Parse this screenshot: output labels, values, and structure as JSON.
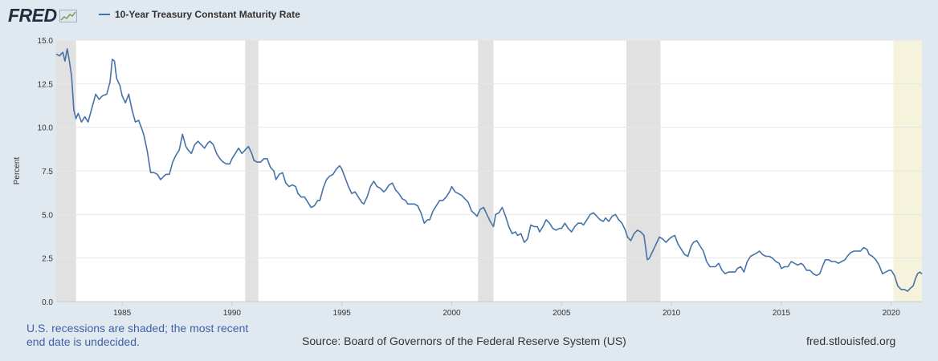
{
  "header": {
    "logo_text": "FRED",
    "logo_icon": "chart-trend-icon",
    "legend_label": "10-Year Treasury Constant Maturity Rate"
  },
  "colors": {
    "background": "#e1e9f0",
    "plot_background": "#ffffff",
    "series_line": "#4572a7",
    "recession_shade": "#e1e1e1",
    "undecided_shade": "#f5f3dc",
    "footer_note_text": "#3e61a8"
  },
  "chart_data": {
    "type": "line",
    "title": "10-Year Treasury Constant Maturity Rate",
    "ylabel": "Percent",
    "xlabel": "",
    "xlim": [
      1982.0,
      2021.4
    ],
    "ylim": [
      0,
      15
    ],
    "x_ticks": [
      {
        "year": 1985,
        "label": "1985"
      },
      {
        "year": 1990,
        "label": "1990"
      },
      {
        "year": 1995,
        "label": "1995"
      },
      {
        "year": 2000,
        "label": "2000"
      },
      {
        "year": 2005,
        "label": "2005"
      },
      {
        "year": 2010,
        "label": "2010"
      },
      {
        "year": 2015,
        "label": "2015"
      },
      {
        "year": 2020,
        "label": "2020"
      }
    ],
    "y_ticks": [
      {
        "value": 0,
        "label": "0.0"
      },
      {
        "value": 2.5,
        "label": "2.5"
      },
      {
        "value": 5,
        "label": "5.0"
      },
      {
        "value": 7.5,
        "label": "7.5"
      },
      {
        "value": 10,
        "label": "10.0"
      },
      {
        "value": 12.5,
        "label": "12.5"
      },
      {
        "value": 15,
        "label": "15.0"
      }
    ],
    "grid": "horizontal",
    "recessions": [
      {
        "start": 1982.0,
        "end": 1982.9
      },
      {
        "start": 1990.6,
        "end": 1991.2
      },
      {
        "start": 2001.2,
        "end": 2001.9
      },
      {
        "start": 2007.95,
        "end": 2009.5
      }
    ],
    "undecided_shading": {
      "start": 2020.1,
      "end": 2021.4
    },
    "series": [
      {
        "name": "10-Year Treasury Constant Maturity Rate",
        "points": [
          [
            1982.0,
            14.2
          ],
          [
            1982.15,
            14.1
          ],
          [
            1982.3,
            14.3
          ],
          [
            1982.4,
            13.8
          ],
          [
            1982.5,
            14.5
          ],
          [
            1982.6,
            13.8
          ],
          [
            1982.7,
            12.9
          ],
          [
            1982.8,
            11.0
          ],
          [
            1982.9,
            10.5
          ],
          [
            1983.0,
            10.8
          ],
          [
            1983.15,
            10.3
          ],
          [
            1983.3,
            10.6
          ],
          [
            1983.45,
            10.3
          ],
          [
            1983.6,
            11.0
          ],
          [
            1983.8,
            11.9
          ],
          [
            1983.95,
            11.6
          ],
          [
            1984.1,
            11.8
          ],
          [
            1984.3,
            11.9
          ],
          [
            1984.45,
            12.6
          ],
          [
            1984.55,
            13.9
          ],
          [
            1984.65,
            13.8
          ],
          [
            1984.75,
            12.8
          ],
          [
            1984.9,
            12.4
          ],
          [
            1985.0,
            11.8
          ],
          [
            1985.15,
            11.4
          ],
          [
            1985.3,
            11.9
          ],
          [
            1985.45,
            11.0
          ],
          [
            1985.6,
            10.3
          ],
          [
            1985.75,
            10.4
          ],
          [
            1985.9,
            9.9
          ],
          [
            1986.0,
            9.5
          ],
          [
            1986.15,
            8.6
          ],
          [
            1986.3,
            7.4
          ],
          [
            1986.45,
            7.4
          ],
          [
            1986.6,
            7.3
          ],
          [
            1986.75,
            7.0
          ],
          [
            1986.9,
            7.2
          ],
          [
            1987.0,
            7.3
          ],
          [
            1987.15,
            7.3
          ],
          [
            1987.3,
            8.0
          ],
          [
            1987.45,
            8.4
          ],
          [
            1987.6,
            8.7
          ],
          [
            1987.75,
            9.6
          ],
          [
            1987.9,
            8.9
          ],
          [
            1988.0,
            8.7
          ],
          [
            1988.15,
            8.5
          ],
          [
            1988.3,
            9.0
          ],
          [
            1988.45,
            9.2
          ],
          [
            1988.6,
            9.0
          ],
          [
            1988.75,
            8.8
          ],
          [
            1988.9,
            9.1
          ],
          [
            1989.0,
            9.2
          ],
          [
            1989.15,
            9.0
          ],
          [
            1989.3,
            8.5
          ],
          [
            1989.45,
            8.2
          ],
          [
            1989.6,
            8.0
          ],
          [
            1989.75,
            7.9
          ],
          [
            1989.9,
            7.9
          ],
          [
            1990.0,
            8.2
          ],
          [
            1990.15,
            8.5
          ],
          [
            1990.3,
            8.8
          ],
          [
            1990.45,
            8.5
          ],
          [
            1990.6,
            8.7
          ],
          [
            1990.75,
            8.9
          ],
          [
            1990.9,
            8.5
          ],
          [
            1991.0,
            8.1
          ],
          [
            1991.15,
            8.0
          ],
          [
            1991.3,
            8.0
          ],
          [
            1991.45,
            8.2
          ],
          [
            1991.6,
            8.2
          ],
          [
            1991.75,
            7.7
          ],
          [
            1991.9,
            7.5
          ],
          [
            1992.0,
            7.0
          ],
          [
            1992.15,
            7.3
          ],
          [
            1992.3,
            7.4
          ],
          [
            1992.45,
            6.8
          ],
          [
            1992.6,
            6.6
          ],
          [
            1992.75,
            6.7
          ],
          [
            1992.9,
            6.6
          ],
          [
            1993.0,
            6.2
          ],
          [
            1993.15,
            6.0
          ],
          [
            1993.3,
            6.0
          ],
          [
            1993.45,
            5.7
          ],
          [
            1993.6,
            5.4
          ],
          [
            1993.75,
            5.5
          ],
          [
            1993.9,
            5.8
          ],
          [
            1994.0,
            5.8
          ],
          [
            1994.15,
            6.5
          ],
          [
            1994.3,
            7.0
          ],
          [
            1994.45,
            7.2
          ],
          [
            1994.6,
            7.3
          ],
          [
            1994.75,
            7.6
          ],
          [
            1994.9,
            7.8
          ],
          [
            1995.0,
            7.6
          ],
          [
            1995.15,
            7.1
          ],
          [
            1995.3,
            6.6
          ],
          [
            1995.45,
            6.2
          ],
          [
            1995.6,
            6.3
          ],
          [
            1995.75,
            6.0
          ],
          [
            1995.9,
            5.7
          ],
          [
            1996.0,
            5.6
          ],
          [
            1996.15,
            6.0
          ],
          [
            1996.3,
            6.6
          ],
          [
            1996.45,
            6.9
          ],
          [
            1996.6,
            6.6
          ],
          [
            1996.75,
            6.5
          ],
          [
            1996.9,
            6.3
          ],
          [
            1997.0,
            6.4
          ],
          [
            1997.15,
            6.7
          ],
          [
            1997.3,
            6.8
          ],
          [
            1997.45,
            6.4
          ],
          [
            1997.6,
            6.2
          ],
          [
            1997.75,
            5.9
          ],
          [
            1997.9,
            5.8
          ],
          [
            1998.0,
            5.6
          ],
          [
            1998.15,
            5.6
          ],
          [
            1998.3,
            5.6
          ],
          [
            1998.45,
            5.5
          ],
          [
            1998.6,
            5.1
          ],
          [
            1998.75,
            4.5
          ],
          [
            1998.9,
            4.7
          ],
          [
            1999.0,
            4.7
          ],
          [
            1999.15,
            5.2
          ],
          [
            1999.3,
            5.5
          ],
          [
            1999.45,
            5.8
          ],
          [
            1999.6,
            5.8
          ],
          [
            1999.75,
            6.0
          ],
          [
            1999.9,
            6.3
          ],
          [
            2000.0,
            6.6
          ],
          [
            2000.15,
            6.3
          ],
          [
            2000.3,
            6.2
          ],
          [
            2000.45,
            6.1
          ],
          [
            2000.6,
            5.9
          ],
          [
            2000.75,
            5.7
          ],
          [
            2000.9,
            5.2
          ],
          [
            2001.0,
            5.1
          ],
          [
            2001.15,
            4.9
          ],
          [
            2001.3,
            5.3
          ],
          [
            2001.45,
            5.4
          ],
          [
            2001.6,
            5.0
          ],
          [
            2001.75,
            4.6
          ],
          [
            2001.9,
            4.3
          ],
          [
            2002.0,
            5.0
          ],
          [
            2002.15,
            5.1
          ],
          [
            2002.3,
            5.4
          ],
          [
            2002.45,
            4.9
          ],
          [
            2002.6,
            4.3
          ],
          [
            2002.75,
            3.9
          ],
          [
            2002.9,
            4.0
          ],
          [
            2003.0,
            3.8
          ],
          [
            2003.15,
            3.9
          ],
          [
            2003.3,
            3.4
          ],
          [
            2003.45,
            3.6
          ],
          [
            2003.6,
            4.4
          ],
          [
            2003.75,
            4.3
          ],
          [
            2003.9,
            4.3
          ],
          [
            2004.0,
            4.0
          ],
          [
            2004.15,
            4.3
          ],
          [
            2004.3,
            4.7
          ],
          [
            2004.45,
            4.5
          ],
          [
            2004.6,
            4.2
          ],
          [
            2004.75,
            4.1
          ],
          [
            2004.9,
            4.2
          ],
          [
            2005.0,
            4.2
          ],
          [
            2005.15,
            4.5
          ],
          [
            2005.3,
            4.2
          ],
          [
            2005.45,
            4.0
          ],
          [
            2005.6,
            4.3
          ],
          [
            2005.75,
            4.5
          ],
          [
            2005.9,
            4.5
          ],
          [
            2006.0,
            4.4
          ],
          [
            2006.15,
            4.7
          ],
          [
            2006.3,
            5.0
          ],
          [
            2006.45,
            5.1
          ],
          [
            2006.6,
            4.9
          ],
          [
            2006.75,
            4.7
          ],
          [
            2006.9,
            4.6
          ],
          [
            2007.0,
            4.8
          ],
          [
            2007.15,
            4.6
          ],
          [
            2007.3,
            4.9
          ],
          [
            2007.45,
            5.0
          ],
          [
            2007.6,
            4.7
          ],
          [
            2007.75,
            4.5
          ],
          [
            2007.9,
            4.1
          ],
          [
            2008.0,
            3.7
          ],
          [
            2008.15,
            3.5
          ],
          [
            2008.3,
            3.9
          ],
          [
            2008.45,
            4.1
          ],
          [
            2008.6,
            4.0
          ],
          [
            2008.75,
            3.8
          ],
          [
            2008.9,
            2.4
          ],
          [
            2009.0,
            2.5
          ],
          [
            2009.15,
            2.9
          ],
          [
            2009.3,
            3.3
          ],
          [
            2009.45,
            3.7
          ],
          [
            2009.6,
            3.6
          ],
          [
            2009.75,
            3.4
          ],
          [
            2009.9,
            3.6
          ],
          [
            2010.0,
            3.7
          ],
          [
            2010.15,
            3.8
          ],
          [
            2010.3,
            3.3
          ],
          [
            2010.45,
            3.0
          ],
          [
            2010.6,
            2.7
          ],
          [
            2010.75,
            2.6
          ],
          [
            2010.9,
            3.2
          ],
          [
            2011.0,
            3.4
          ],
          [
            2011.15,
            3.5
          ],
          [
            2011.3,
            3.2
          ],
          [
            2011.45,
            2.9
          ],
          [
            2011.6,
            2.3
          ],
          [
            2011.75,
            2.0
          ],
          [
            2011.9,
            2.0
          ],
          [
            2012.0,
            2.0
          ],
          [
            2012.15,
            2.2
          ],
          [
            2012.3,
            1.8
          ],
          [
            2012.45,
            1.6
          ],
          [
            2012.6,
            1.7
          ],
          [
            2012.75,
            1.7
          ],
          [
            2012.9,
            1.7
          ],
          [
            2013.0,
            1.9
          ],
          [
            2013.15,
            2.0
          ],
          [
            2013.3,
            1.7
          ],
          [
            2013.45,
            2.3
          ],
          [
            2013.6,
            2.6
          ],
          [
            2013.75,
            2.7
          ],
          [
            2013.9,
            2.8
          ],
          [
            2014.0,
            2.9
          ],
          [
            2014.15,
            2.7
          ],
          [
            2014.3,
            2.6
          ],
          [
            2014.45,
            2.6
          ],
          [
            2014.6,
            2.5
          ],
          [
            2014.75,
            2.3
          ],
          [
            2014.9,
            2.2
          ],
          [
            2015.0,
            1.9
          ],
          [
            2015.15,
            2.0
          ],
          [
            2015.3,
            2.0
          ],
          [
            2015.45,
            2.3
          ],
          [
            2015.6,
            2.2
          ],
          [
            2015.75,
            2.1
          ],
          [
            2015.9,
            2.2
          ],
          [
            2016.0,
            2.1
          ],
          [
            2016.15,
            1.8
          ],
          [
            2016.3,
            1.8
          ],
          [
            2016.45,
            1.6
          ],
          [
            2016.6,
            1.5
          ],
          [
            2016.75,
            1.6
          ],
          [
            2016.9,
            2.1
          ],
          [
            2017.0,
            2.4
          ],
          [
            2017.15,
            2.4
          ],
          [
            2017.3,
            2.3
          ],
          [
            2017.45,
            2.3
          ],
          [
            2017.6,
            2.2
          ],
          [
            2017.75,
            2.3
          ],
          [
            2017.9,
            2.4
          ],
          [
            2018.0,
            2.6
          ],
          [
            2018.15,
            2.8
          ],
          [
            2018.3,
            2.9
          ],
          [
            2018.45,
            2.9
          ],
          [
            2018.6,
            2.9
          ],
          [
            2018.75,
            3.1
          ],
          [
            2018.9,
            3.0
          ],
          [
            2019.0,
            2.7
          ],
          [
            2019.15,
            2.6
          ],
          [
            2019.3,
            2.4
          ],
          [
            2019.45,
            2.1
          ],
          [
            2019.6,
            1.6
          ],
          [
            2019.75,
            1.7
          ],
          [
            2019.9,
            1.8
          ],
          [
            2020.0,
            1.8
          ],
          [
            2020.15,
            1.5
          ],
          [
            2020.3,
            0.9
          ],
          [
            2020.45,
            0.7
          ],
          [
            2020.6,
            0.7
          ],
          [
            2020.75,
            0.6
          ],
          [
            2020.9,
            0.8
          ],
          [
            2021.0,
            0.9
          ],
          [
            2021.1,
            1.3
          ],
          [
            2021.2,
            1.6
          ],
          [
            2021.3,
            1.7
          ],
          [
            2021.4,
            1.6
          ]
        ]
      }
    ]
  },
  "footer": {
    "note": "U.S. recessions are shaded; the most recent end date is undecided.",
    "source": "Source: Board of Governors of the Federal Reserve System (US)",
    "url": "fred.stlouisfed.org"
  }
}
